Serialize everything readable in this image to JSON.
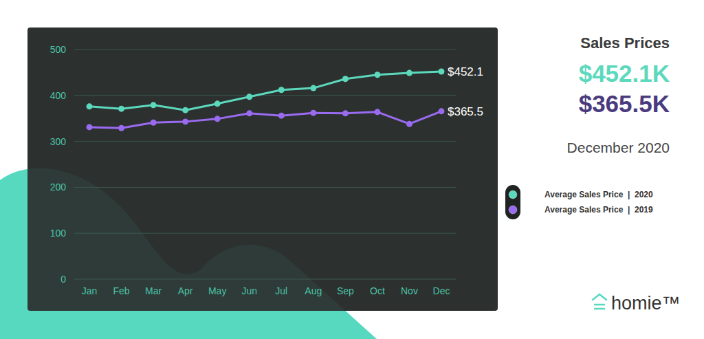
{
  "chart_data": {
    "type": "line",
    "title": "Sales Prices",
    "subtitle": "December 2020",
    "annotations": [
      "$452.1K",
      "$365.5K"
    ],
    "logo": "homie™",
    "categories": [
      "Jan",
      "Feb",
      "Mar",
      "Apr",
      "May",
      "Jun",
      "Jul",
      "Aug",
      "Sep",
      "Oct",
      "Nov",
      "Dec"
    ],
    "series": [
      {
        "name": "Average Sales Price  |  2020",
        "color": "#5cd9bd",
        "marker": "circle",
        "values": [
          376,
          371,
          379,
          368,
          382,
          397,
          412,
          416,
          436,
          445,
          449,
          452.1
        ],
        "value_labels": [
          null,
          null,
          null,
          null,
          null,
          null,
          null,
          null,
          null,
          null,
          null,
          "$452.1"
        ]
      },
      {
        "name": "Average Sales Price  |  2019",
        "color": "#9a6bf0",
        "marker": "circle",
        "values": [
          331,
          329,
          341,
          343,
          349,
          361,
          356,
          362,
          361,
          364,
          338,
          365.5
        ],
        "value_labels": [
          null,
          null,
          null,
          null,
          null,
          null,
          null,
          null,
          null,
          null,
          null,
          "$365.5"
        ]
      }
    ],
    "ylim": [
      0,
      500
    ],
    "yticks": [
      0,
      100,
      200,
      300,
      400,
      500
    ],
    "grid": true,
    "legend": "right"
  }
}
